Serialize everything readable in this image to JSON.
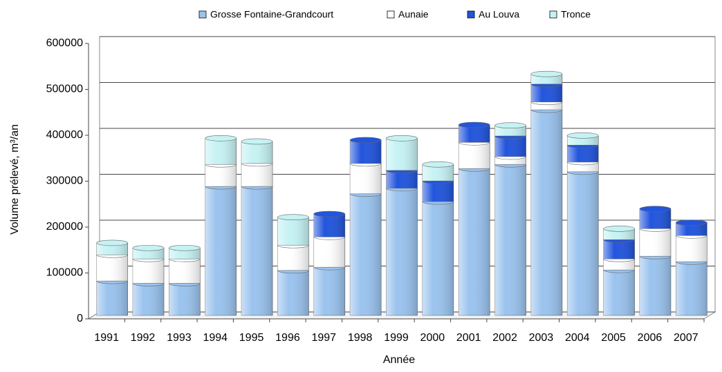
{
  "chart_data": {
    "type": "stacked_bar",
    "x_label": "Année",
    "y_label": "Volume prélevé, m³/an",
    "categories": [
      "1991",
      "1992",
      "1993",
      "1994",
      "1995",
      "1996",
      "1997",
      "1998",
      "1999",
      "2000",
      "2001",
      "2002",
      "2003",
      "2004",
      "2005",
      "2006",
      "2007"
    ],
    "series": [
      {
        "name": "Grosse Fontaine-Grandcourt",
        "color": "#9ac3ee",
        "values": [
          75000,
          70000,
          70000,
          281000,
          281000,
          98000,
          105000,
          265000,
          277000,
          248000,
          320000,
          329000,
          448000,
          313000,
          99000,
          129000,
          117000
        ]
      },
      {
        "name": "Aunaie",
        "color": "#ffffff",
        "values": [
          57000,
          53000,
          53000,
          48000,
          50000,
          55000,
          66000,
          66000,
          0,
          0,
          57000,
          17000,
          17000,
          21000,
          24000,
          60000,
          57000
        ]
      },
      {
        "name": "Au Louva",
        "color": "#2255dd",
        "values": [
          0,
          0,
          0,
          0,
          0,
          0,
          50000,
          51000,
          39000,
          45000,
          38000,
          45000,
          39000,
          37000,
          42000,
          43000,
          28000
        ]
      },
      {
        "name": "Tronce",
        "color": "#c6f2f4",
        "values": [
          26000,
          24000,
          24000,
          57000,
          48000,
          61000,
          0,
          0,
          70000,
          36000,
          0,
          23000,
          22000,
          21000,
          24000,
          0,
          0
        ]
      }
    ],
    "ylim": [
      0,
      600000
    ],
    "yticks": [
      0,
      100000,
      200000,
      300000,
      400000,
      500000,
      600000
    ],
    "grid": true,
    "legend": "top"
  }
}
